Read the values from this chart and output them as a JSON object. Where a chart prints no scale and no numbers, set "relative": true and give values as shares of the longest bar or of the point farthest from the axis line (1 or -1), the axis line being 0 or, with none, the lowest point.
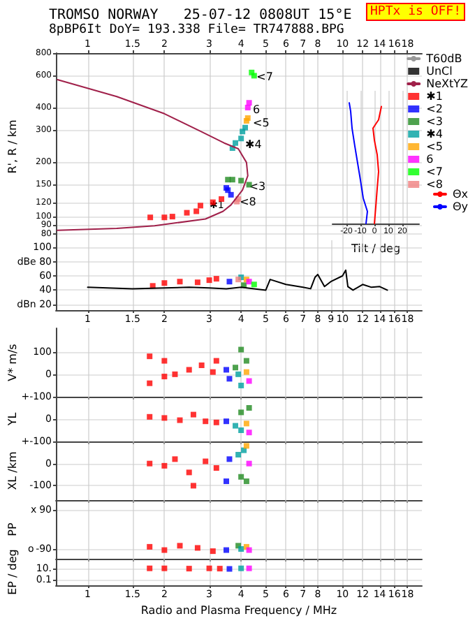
{
  "chart_data": [
    {
      "type": "scatter",
      "title": "TROMSO NORWAY   25-07-12 0808UT 15°E",
      "subtitle": "8pBP6It DoY= 193.338 File= TR747888.BPG",
      "ylabel": "R', R / km",
      "log": "xy",
      "grid": true,
      "legend": "right",
      "marker": "square",
      "xlim": [
        0.75,
        20.5
      ],
      "xticks": [
        1,
        1.5,
        2,
        3,
        4,
        5,
        6,
        7,
        8,
        10,
        12,
        14,
        16,
        18
      ],
      "ylim": [
        74,
        800
      ],
      "yticks": [
        80,
        90,
        100,
        120,
        150,
        200,
        300,
        400,
        600,
        800
      ],
      "annotations": [
        "HPTx is OFF!",
        {
          "text": "<7",
          "x": 4.6,
          "y": 590
        },
        {
          "text": "6",
          "x": 4.45,
          "y": 390
        },
        {
          "text": "<5",
          "x": 4.45,
          "y": 330
        },
        {
          "text": "✱4",
          "x": 4.15,
          "y": 250
        },
        {
          "text": "<3",
          "x": 4.3,
          "y": 146
        },
        {
          "text": "<8",
          "x": 3.95,
          "y": 121
        },
        "✱1"
      ],
      "series": [
        {
          "name": "T60dB",
          "type": "line",
          "marker": "none",
          "color": "#999999"
        },
        {
          "name": "UnCl",
          "type": "scatter",
          "color": "#000000"
        },
        {
          "name": "NeXtYZ",
          "type": "line",
          "marker": "none",
          "color": "#a0204a",
          "x": [
            0.76,
            1.3,
            2.0,
            2.77,
            3.43,
            3.9,
            4.2,
            4.25,
            4.05,
            3.65,
            3.4,
            2.9,
            1.83,
            1.3,
            0.76
          ],
          "values": [
            571,
            460,
            370,
            296,
            255,
            237,
            199,
            168,
            140,
            116,
            107,
            97,
            89,
            86,
            84
          ]
        },
        {
          "name": "✱1",
          "color": "#ff0000",
          "x": [
            1.76,
            2.0,
            2.15,
            2.45,
            2.67,
            2.77,
            3.1,
            3.35
          ],
          "values": [
            99,
            99,
            100,
            105,
            107,
            115,
            120,
            125
          ]
        },
        {
          "name": "<2",
          "color": "#0000ff",
          "x": [
            3.5,
            3.55,
            3.65
          ],
          "values": [
            144,
            140,
            132
          ]
        },
        {
          "name": "<3",
          "color": "#228b22",
          "x": [
            3.55,
            3.7,
            4.0,
            4.3
          ],
          "values": [
            160,
            160,
            158,
            150
          ]
        },
        {
          "name": "✱4",
          "color": "#00a0a0",
          "x": [
            3.7,
            3.8,
            4.0,
            4.05,
            4.15
          ],
          "values": [
            239,
            255,
            270,
            295,
            310
          ]
        },
        {
          "name": "<5",
          "color": "#ffa500",
          "x": [
            4.2,
            4.25
          ],
          "values": [
            338,
            350
          ]
        },
        {
          "name": "6",
          "color": "#ff00ff",
          "x": [
            4.25,
            4.3
          ],
          "values": [
            400,
            425
          ]
        },
        {
          "name": "<7",
          "color": "#00ff00",
          "x": [
            4.4,
            4.5
          ],
          "values": [
            625,
            600
          ]
        },
        {
          "name": "<8",
          "color": "#f08080",
          "x": [
            3.85,
            3.9
          ],
          "values": [
            121,
            125
          ]
        }
      ]
    },
    {
      "type": "line",
      "xlabel": "Tilt / deg",
      "xlim": [
        -30,
        32
      ],
      "xticks": [
        -20,
        -10,
        0,
        10,
        20
      ],
      "relative": true,
      "grid": "x",
      "legend": "right",
      "series": [
        {
          "name": "Θx",
          "color": "#ff0000",
          "x": [
            0,
            1,
            2,
            3,
            2,
            0,
            -1,
            3,
            5
          ],
          "values": [
            0,
            0.14,
            0.29,
            0.43,
            0.57,
            0.69,
            0.79,
            0.86,
            0.97
          ]
        },
        {
          "name": "Θy",
          "color": "#0000ff",
          "x": [
            -6,
            -5,
            -8,
            -10,
            -12,
            -14,
            -16,
            -17,
            -18
          ],
          "values": [
            0,
            0.1,
            0.21,
            0.36,
            0.5,
            0.64,
            0.79,
            0.93,
            1
          ]
        }
      ]
    },
    {
      "type": "scatter",
      "log": "x",
      "grid": true,
      "marker": "square",
      "xlim": [
        0.75,
        20.5
      ],
      "xticks": [
        1,
        1.5,
        2,
        3,
        4,
        5,
        6,
        7,
        8,
        9,
        10,
        12,
        14,
        16,
        18
      ],
      "ylim": [
        12,
        110
      ],
      "yticks": [
        100,
        {
          "value": 80,
          "label": "dBe 80"
        },
        60,
        40,
        {
          "value": 20,
          "label": "dBn 20"
        }
      ],
      "series": [
        {
          "type": "line",
          "marker": "none",
          "color": "#000000",
          "x": [
            1,
            1.5,
            2,
            2.5,
            3,
            3.5,
            4,
            4.5,
            5,
            5.2,
            6,
            7,
            7.5,
            7.8,
            8,
            8.5,
            9,
            10,
            10.3,
            10.5,
            11,
            12,
            13,
            14,
            15
          ],
          "values": [
            44,
            42,
            43,
            44,
            43,
            42,
            44,
            42,
            40,
            55,
            48,
            44,
            42,
            58,
            62,
            45,
            52,
            60,
            68,
            45,
            40,
            48,
            44,
            45,
            40
          ]
        },
        {
          "color": "#ff0000",
          "x": [
            1.8,
            2.0,
            2.3,
            2.7,
            3.0,
            3.2
          ],
          "values": [
            46,
            50,
            52,
            51,
            54,
            56
          ]
        },
        {
          "color": "#0000ff",
          "x": [
            3.6
          ],
          "values": [
            52
          ]
        },
        {
          "color": "#228b22",
          "x": [
            4.1
          ],
          "values": [
            47
          ]
        },
        {
          "color": "#00a0a0",
          "x": [
            4.0
          ],
          "values": [
            58
          ]
        },
        {
          "color": "#ffa500",
          "x": [
            4.2
          ],
          "values": [
            55
          ]
        },
        {
          "color": "#ff00ff",
          "x": [
            4.3
          ],
          "values": [
            52
          ]
        },
        {
          "color": "#00ff00",
          "x": [
            4.5
          ],
          "values": [
            48
          ]
        },
        {
          "color": "#f08080",
          "x": [
            3.9
          ],
          "values": [
            55
          ]
        }
      ]
    },
    {
      "type": "scatter",
      "ylabel": "V* m/s",
      "log": "x",
      "grid": true,
      "marker": "square",
      "tick_labels": "y",
      "xlim": [
        0.75,
        20.5
      ],
      "xticks": [
        1,
        1.5,
        2,
        3,
        4,
        5,
        6,
        7,
        8,
        10,
        12,
        14,
        16,
        18
      ],
      "ylim": [
        -100,
        205
      ],
      "yticks": [
        100,
        0,
        {
          "value": -100,
          "label": "+-100"
        }
      ],
      "series": [
        {
          "color": "#ff0000",
          "x": [
            1.75,
            1.75,
            2,
            2,
            2.2,
            2.5,
            2.8,
            3.1,
            3.2
          ],
          "values": [
            -40,
            80,
            -10,
            60,
            0,
            20,
            40,
            10,
            60
          ]
        },
        {
          "color": "#0000ff",
          "x": [
            3.5,
            3.6
          ],
          "values": [
            20,
            -20
          ]
        },
        {
          "color": "#228b22",
          "x": [
            3.8,
            4.0,
            4.2
          ],
          "values": [
            30,
            110,
            60
          ]
        },
        {
          "color": "#00a0a0",
          "x": [
            3.9,
            4.0
          ],
          "values": [
            0,
            -50
          ]
        },
        {
          "color": "#ffa500",
          "x": [
            4.2
          ],
          "values": [
            10
          ]
        },
        {
          "color": "#ff00ff",
          "x": [
            4.3
          ],
          "values": [
            -30
          ]
        }
      ]
    },
    {
      "type": "scatter",
      "ylabel": "YL",
      "log": "x",
      "grid": true,
      "marker": "square",
      "tick_labels": "y",
      "xlim": [
        0.75,
        20.5
      ],
      "xticks": [
        1,
        1.5,
        2,
        3,
        4,
        5,
        6,
        7,
        8,
        10,
        12,
        14,
        16,
        18
      ],
      "ylim": [
        -100,
        100
      ],
      "yticks": [
        0,
        {
          "value": -100,
          "label": "+-100"
        }
      ],
      "series": [
        {
          "color": "#ff0000",
          "x": [
            1.75,
            2,
            2.3,
            2.6,
            2.9,
            3.2
          ],
          "values": [
            10,
            5,
            -5,
            20,
            -10,
            -15
          ]
        },
        {
          "color": "#0000ff",
          "x": [
            3.5
          ],
          "values": [
            -10
          ]
        },
        {
          "color": "#228b22",
          "x": [
            4.0,
            4.3
          ],
          "values": [
            30,
            50
          ]
        },
        {
          "color": "#00a0a0",
          "x": [
            3.8,
            4.0
          ],
          "values": [
            -30,
            -50
          ]
        },
        {
          "color": "#ffa500",
          "x": [
            4.2
          ],
          "values": [
            -20
          ]
        },
        {
          "color": "#ff00ff",
          "x": [
            4.3
          ],
          "values": [
            -60
          ]
        }
      ]
    },
    {
      "type": "scatter",
      "ylabel": "XL /km",
      "log": "x",
      "grid": true,
      "marker": "square",
      "tick_labels": "y",
      "xlim": [
        0.75,
        20.5
      ],
      "xticks": [
        1,
        1.5,
        2,
        3,
        4,
        5,
        6,
        7,
        8,
        10,
        12,
        14,
        16,
        18
      ],
      "ylim": [
        -165,
        100
      ],
      "yticks": [
        0,
        -100
      ],
      "series": [
        {
          "color": "#ff0000",
          "x": [
            1.75,
            2,
            2.2,
            2.5,
            2.6,
            2.9,
            3.2
          ],
          "values": [
            0,
            -10,
            20,
            -40,
            -100,
            10,
            -20
          ]
        },
        {
          "color": "#0000ff",
          "x": [
            3.5,
            3.6
          ],
          "values": [
            -80,
            20
          ]
        },
        {
          "color": "#228b22",
          "x": [
            4.0,
            4.2
          ],
          "values": [
            -60,
            -80
          ]
        },
        {
          "color": "#00a0a0",
          "x": [
            3.9,
            4.1
          ],
          "values": [
            40,
            60
          ]
        },
        {
          "color": "#ffa500",
          "x": [
            4.2
          ],
          "values": [
            80
          ]
        },
        {
          "color": "#ff00ff",
          "x": [
            4.3
          ],
          "values": [
            0
          ]
        }
      ]
    },
    {
      "type": "scatter",
      "ylabel": "PP",
      "log": "x",
      "grid": true,
      "marker": "square",
      "tick_labels": "y",
      "xlim": [
        0.75,
        20.5
      ],
      "xticks": [
        1,
        1.5,
        2,
        3,
        4,
        5,
        6,
        7,
        8,
        10,
        12,
        14,
        16,
        18
      ],
      "ylim": [
        -135,
        135
      ],
      "yticks": [
        90,
        -90
      ],
      "annotations": [
        "x",
        "o"
      ],
      "series": [
        {
          "color": "#ff0000",
          "x": [
            1.75,
            2,
            2.3,
            2.7,
            3.1
          ],
          "values": [
            -80,
            -95,
            -75,
            -85,
            -100
          ]
        },
        {
          "color": "#0000ff",
          "x": [
            3.5
          ],
          "values": [
            -95
          ]
        },
        {
          "color": "#228b22",
          "x": [
            3.9
          ],
          "values": [
            -75
          ]
        },
        {
          "color": "#00a0a0",
          "x": [
            4.0
          ],
          "values": [
            -90
          ]
        },
        {
          "color": "#ffa500",
          "x": [
            4.2
          ],
          "values": [
            -80
          ]
        },
        {
          "color": "#ff00ff",
          "x": [
            4.3
          ],
          "values": [
            -95
          ]
        }
      ]
    },
    {
      "type": "scatter",
      "ylabel": "EP / deg",
      "xlabel": "Radio and Plasma Frequency / MHz",
      "log": "xy",
      "grid": true,
      "marker": "square",
      "xlim": [
        0.75,
        20.5
      ],
      "xticks": [
        1,
        1.5,
        2,
        3,
        4,
        5,
        6,
        7,
        8,
        10,
        12,
        14,
        16,
        18
      ],
      "ylim": [
        0.01,
        500
      ],
      "yticks": [
        {
          "value": 10,
          "label": "10."
        },
        0.1
      ],
      "series": [
        {
          "color": "#ff0000",
          "x": [
            1.75,
            2,
            2.5,
            3,
            3.3
          ],
          "values": [
            10,
            10,
            9,
            10,
            9
          ]
        },
        {
          "color": "#0000ff",
          "x": [
            3.6
          ],
          "values": [
            8
          ]
        },
        {
          "color": "#00a0a0",
          "x": [
            4.0
          ],
          "values": [
            10
          ]
        },
        {
          "color": "#ff00ff",
          "x": [
            4.3
          ],
          "values": [
            10
          ]
        }
      ]
    }
  ]
}
